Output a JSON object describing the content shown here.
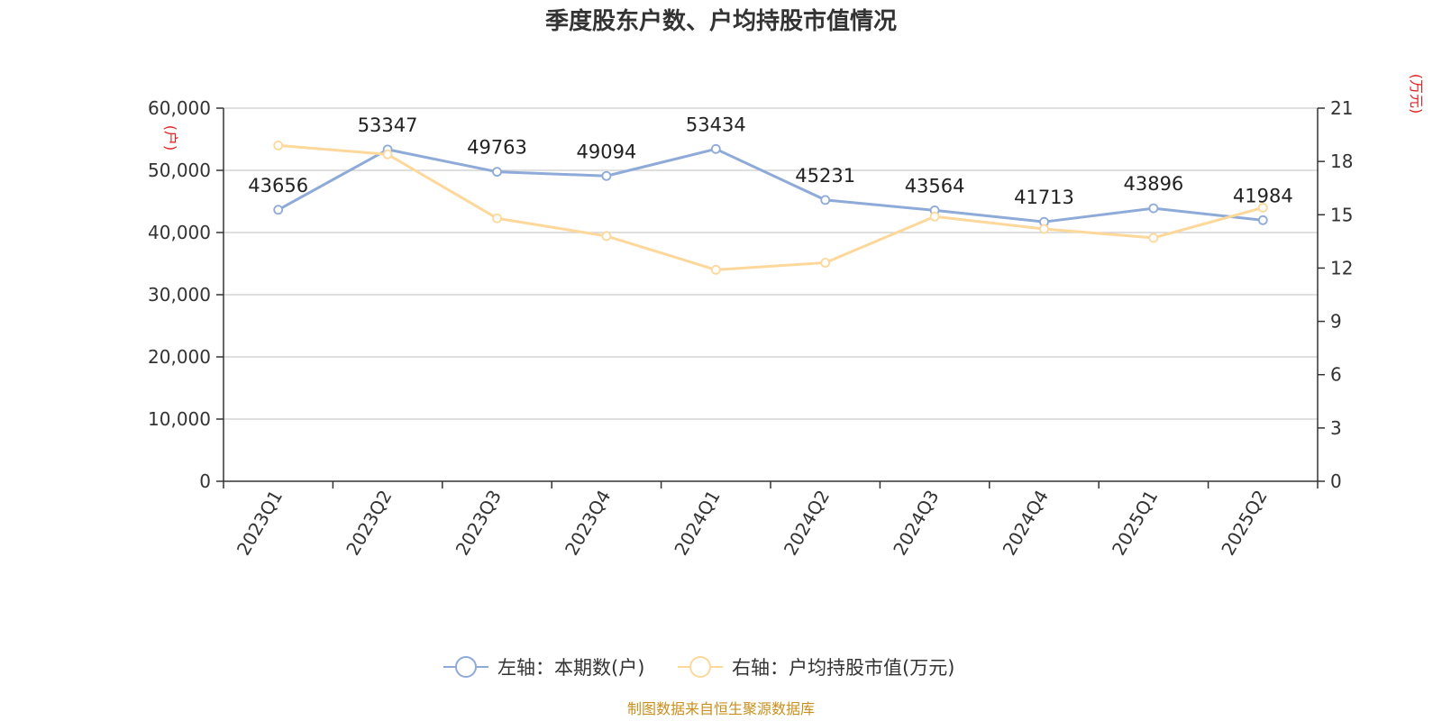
{
  "colors": {
    "series_left": "#8eaad8",
    "series_right": "#fdd89a",
    "axis_unit": "#e02020",
    "source": "#c8901e",
    "grid": "#cccccc",
    "axis": "#333333"
  },
  "chart_data": {
    "type": "line",
    "title": "季度股东户数、户均持股市值情况",
    "categories": [
      "2023Q1",
      "2023Q2",
      "2023Q3",
      "2023Q4",
      "2024Q1",
      "2024Q2",
      "2024Q3",
      "2024Q4",
      "2025Q1",
      "2025Q2"
    ],
    "y_left": {
      "unit": "(户)",
      "ylim": [
        0,
        60000
      ],
      "ticks": [
        0,
        10000,
        20000,
        30000,
        40000,
        50000,
        60000
      ],
      "tick_labels": [
        "0",
        "10,000",
        "20,000",
        "30,000",
        "40,000",
        "50,000",
        "60,000"
      ]
    },
    "y_right": {
      "unit": "(万元)",
      "ylim": [
        0,
        21
      ],
      "ticks": [
        0,
        3,
        6,
        9,
        12,
        15,
        18,
        21
      ],
      "tick_labels": [
        "0",
        "3",
        "6",
        "9",
        "12",
        "15",
        "18",
        "21"
      ]
    },
    "grid": true,
    "legend_position": "bottom-center",
    "series": [
      {
        "name": "左轴：本期数(户)",
        "axis": "left",
        "values": [
          43656,
          53347,
          49763,
          49094,
          53434,
          45231,
          43564,
          41713,
          43896,
          41984
        ],
        "data_labels": [
          "43656",
          "53347",
          "49763",
          "49094",
          "53434",
          "45231",
          "43564",
          "41713",
          "43896",
          "41984"
        ]
      },
      {
        "name": "右轴：户均持股市值(万元)",
        "axis": "right",
        "values": [
          18.9,
          18.4,
          14.8,
          13.8,
          11.9,
          12.3,
          14.9,
          14.2,
          13.7,
          15.4
        ]
      }
    ]
  },
  "source_text": "制图数据来自恒生聚源数据库"
}
